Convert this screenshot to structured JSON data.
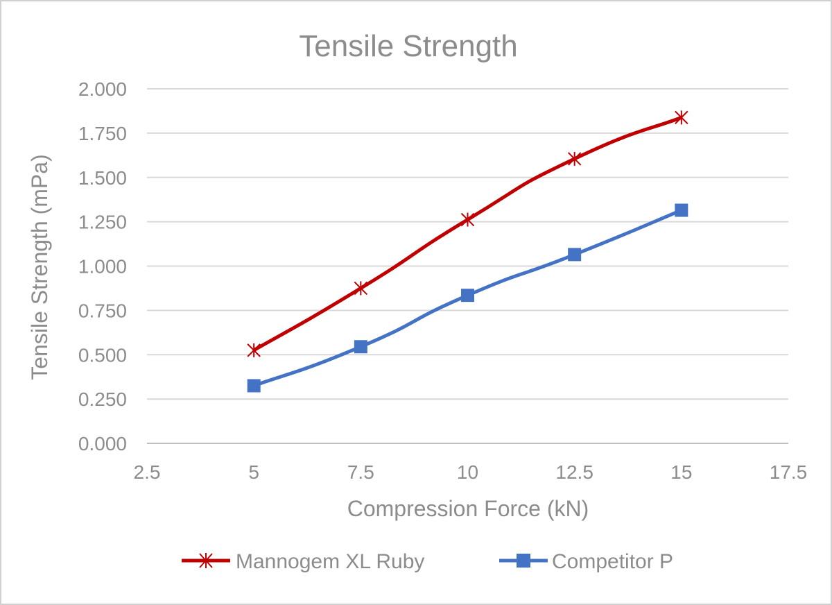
{
  "chart_data": {
    "type": "line",
    "title": "Tensile Strength",
    "xlabel": "Compression Force (kN)",
    "ylabel": "Tensile Strength (mPa)",
    "xlim": [
      2.5,
      17.5
    ],
    "ylim": [
      0,
      2
    ],
    "xticks": [
      2.5,
      5,
      7.5,
      10,
      12.5,
      15,
      17.5
    ],
    "xtick_labels": [
      "2.5",
      "5",
      "7.5",
      "10",
      "12.5",
      "15",
      "17.5"
    ],
    "yticks": [
      0,
      0.25,
      0.5,
      0.75,
      1.0,
      1.25,
      1.5,
      1.75,
      2.0
    ],
    "ytick_labels": [
      "0.000",
      "0.250",
      "0.500",
      "0.750",
      "1.000",
      "1.250",
      "1.500",
      "1.750",
      "2.000"
    ],
    "grid": "horizontal",
    "legend_position": "bottom",
    "series": [
      {
        "name": "Mannogem XL Ruby",
        "color": "#c00000",
        "marker": "asterisk",
        "smooth": true,
        "x": [
          5,
          7.5,
          10,
          12.5,
          15
        ],
        "y": [
          0.525,
          0.875,
          1.262,
          1.605,
          1.838
        ]
      },
      {
        "name": "Competitor P",
        "color": "#4472c4",
        "marker": "square",
        "smooth": true,
        "x": [
          5,
          7.5,
          10,
          12.5,
          15
        ],
        "y": [
          0.325,
          0.545,
          0.835,
          1.065,
          1.315
        ]
      }
    ]
  }
}
